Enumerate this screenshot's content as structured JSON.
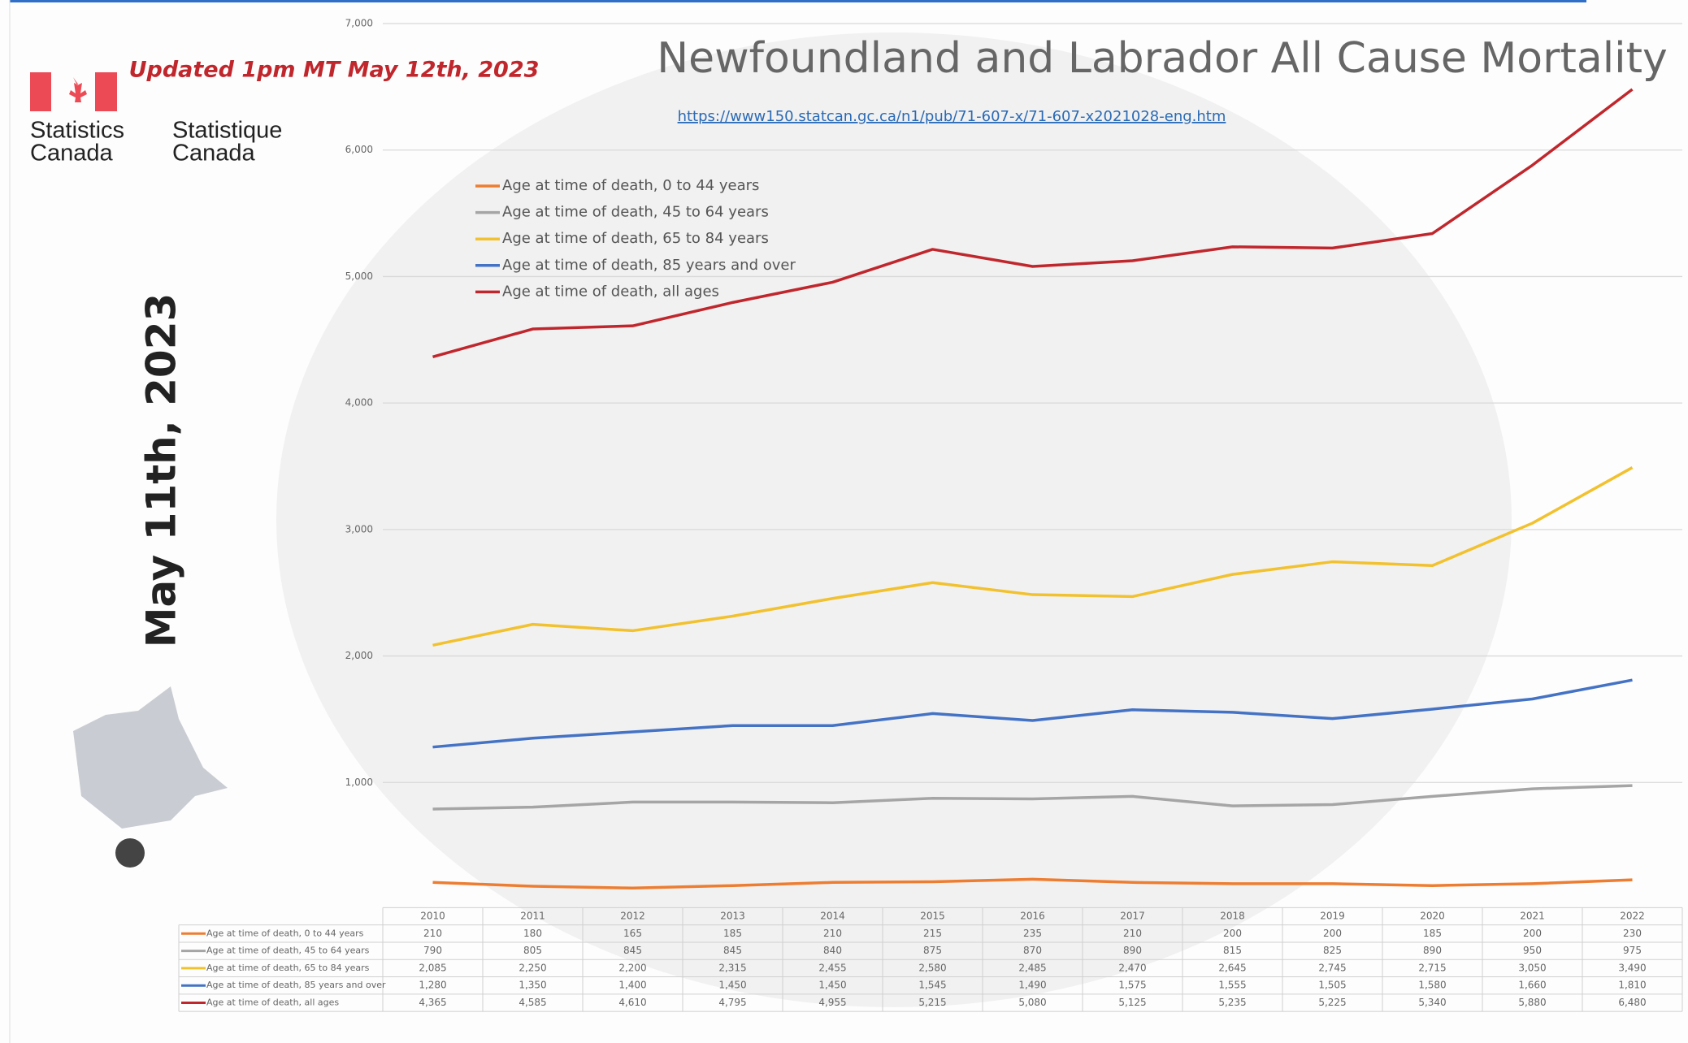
{
  "chart_data": {
    "type": "line",
    "title": "Newfoundland and Labrador All Cause Mortality",
    "subtitle": "https://www150.statcan.gc.ca/n1/pub/71-607-x/71-607-x2021028-eng.htm",
    "updated": "Updated 1pm MT May 12th, 2023",
    "side_label": "May 11th, 2023",
    "logo_text": [
      "Statistics",
      "Canada",
      "Statistique",
      "Canada"
    ],
    "categories": [
      "2010",
      "2011",
      "2012",
      "2013",
      "2014",
      "2015",
      "2016",
      "2017",
      "2018",
      "2019",
      "2020",
      "2021",
      "2022"
    ],
    "series": [
      {
        "name": "Age at time of death, 0 to 44 years",
        "color": "#ed7d31",
        "values": [
          210,
          180,
          165,
          185,
          210,
          215,
          235,
          210,
          200,
          200,
          185,
          200,
          230
        ],
        "value_labels": [
          "210",
          "180",
          "165",
          "185",
          "210",
          "215",
          "235",
          "210",
          "200",
          "200",
          "185",
          "200",
          "230"
        ]
      },
      {
        "name": "Age at time of death, 45 to 64 years",
        "color": "#a5a5a5",
        "values": [
          790,
          805,
          845,
          845,
          840,
          875,
          870,
          890,
          815,
          825,
          890,
          950,
          975
        ],
        "value_labels": [
          "790",
          "805",
          "845",
          "845",
          "840",
          "875",
          "870",
          "890",
          "815",
          "825",
          "890",
          "950",
          "975"
        ]
      },
      {
        "name": "Age at time of death, 65 to 84 years",
        "color": "#f2c12e",
        "values": [
          2085,
          2250,
          2200,
          2315,
          2455,
          2580,
          2485,
          2470,
          2645,
          2745,
          2715,
          3050,
          3490
        ],
        "value_labels": [
          "2,085",
          "2,250",
          "2,200",
          "2,315",
          "2,455",
          "2,580",
          "2,485",
          "2,470",
          "2,645",
          "2,745",
          "2,715",
          "3,050",
          "3,490"
        ]
      },
      {
        "name": "Age at time of death, 85 years and over",
        "color": "#4472c4",
        "values": [
          1280,
          1350,
          1400,
          1450,
          1450,
          1545,
          1490,
          1575,
          1555,
          1505,
          1580,
          1660,
          1810
        ],
        "value_labels": [
          "1,280",
          "1,350",
          "1,400",
          "1,450",
          "1,450",
          "1,545",
          "1,490",
          "1,575",
          "1,555",
          "1,505",
          "1,580",
          "1,660",
          "1,810"
        ]
      },
      {
        "name": "Age at time of death, all ages",
        "color": "#c0272d",
        "values": [
          4365,
          4585,
          4610,
          4795,
          4955,
          5215,
          5080,
          5125,
          5235,
          5225,
          5340,
          5880,
          6480
        ],
        "value_labels": [
          "4,365",
          "4,585",
          "4,610",
          "4,795",
          "4,955",
          "5,215",
          "5,080",
          "5,125",
          "5,235",
          "5,225",
          "5,340",
          "5,880",
          "6,480"
        ]
      }
    ],
    "ylim": [
      0,
      7000
    ],
    "yticks": [
      {
        "value": 1000,
        "label": "1,000"
      },
      {
        "value": 2000,
        "label": "2,000"
      },
      {
        "value": 3000,
        "label": "3,000"
      },
      {
        "value": 4000,
        "label": "4,000"
      },
      {
        "value": 5000,
        "label": "5,000"
      },
      {
        "value": 6000,
        "label": "6,000"
      },
      {
        "value": 7000,
        "label": "7,000"
      }
    ],
    "grid": true
  }
}
